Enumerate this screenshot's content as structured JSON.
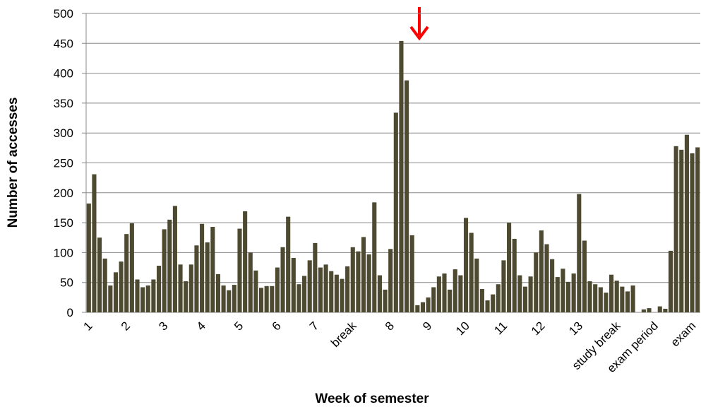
{
  "chart_data": {
    "type": "bar",
    "x_label": "Week of semester",
    "y_label": "Number of accesses",
    "categories": [
      "1",
      null,
      null,
      null,
      null,
      null,
      null,
      "2",
      null,
      null,
      null,
      null,
      null,
      null,
      "3",
      null,
      null,
      null,
      null,
      null,
      null,
      "4",
      null,
      null,
      null,
      null,
      null,
      null,
      "5",
      null,
      null,
      null,
      null,
      null,
      null,
      "6",
      null,
      null,
      null,
      null,
      null,
      null,
      "7",
      null,
      null,
      null,
      null,
      null,
      null,
      "break",
      null,
      null,
      null,
      null,
      null,
      null,
      "8",
      null,
      null,
      null,
      null,
      null,
      null,
      "9",
      null,
      null,
      null,
      null,
      null,
      null,
      "10",
      null,
      null,
      null,
      null,
      null,
      null,
      "11",
      null,
      null,
      null,
      null,
      null,
      null,
      "12",
      null,
      null,
      null,
      null,
      null,
      null,
      "13",
      null,
      null,
      null,
      null,
      null,
      null,
      "study break",
      null,
      null,
      null,
      null,
      null,
      null,
      "exam period",
      null,
      null,
      null,
      null,
      null,
      null,
      "exam",
      null
    ],
    "values": [
      182,
      231,
      125,
      90,
      45,
      67,
      85,
      131,
      149,
      55,
      42,
      45,
      55,
      78,
      139,
      155,
      178,
      80,
      52,
      80,
      112,
      148,
      117,
      143,
      64,
      45,
      37,
      46,
      140,
      169,
      100,
      70,
      41,
      44,
      44,
      75,
      109,
      160,
      91,
      47,
      61,
      87,
      116,
      75,
      80,
      69,
      63,
      56,
      77,
      109,
      102,
      126,
      97,
      184,
      62,
      38,
      106,
      334,
      454,
      388,
      129,
      12,
      17,
      25,
      42,
      60,
      65,
      38,
      72,
      62,
      158,
      133,
      90,
      39,
      20,
      30,
      47,
      87,
      150,
      123,
      62,
      43,
      60,
      100,
      137,
      114,
      89,
      59,
      73,
      51,
      65,
      198,
      120,
      52,
      47,
      42,
      33,
      63,
      53,
      43,
      35,
      45,
      0,
      5,
      7,
      0,
      10,
      6,
      103,
      278,
      272,
      297,
      266,
      276
    ],
    "color": "#4d4a31",
    "ylim": [
      0,
      500
    ],
    "yticks": [
      0,
      50,
      100,
      150,
      200,
      250,
      300,
      350,
      400,
      450,
      500
    ],
    "grid": true
  }
}
